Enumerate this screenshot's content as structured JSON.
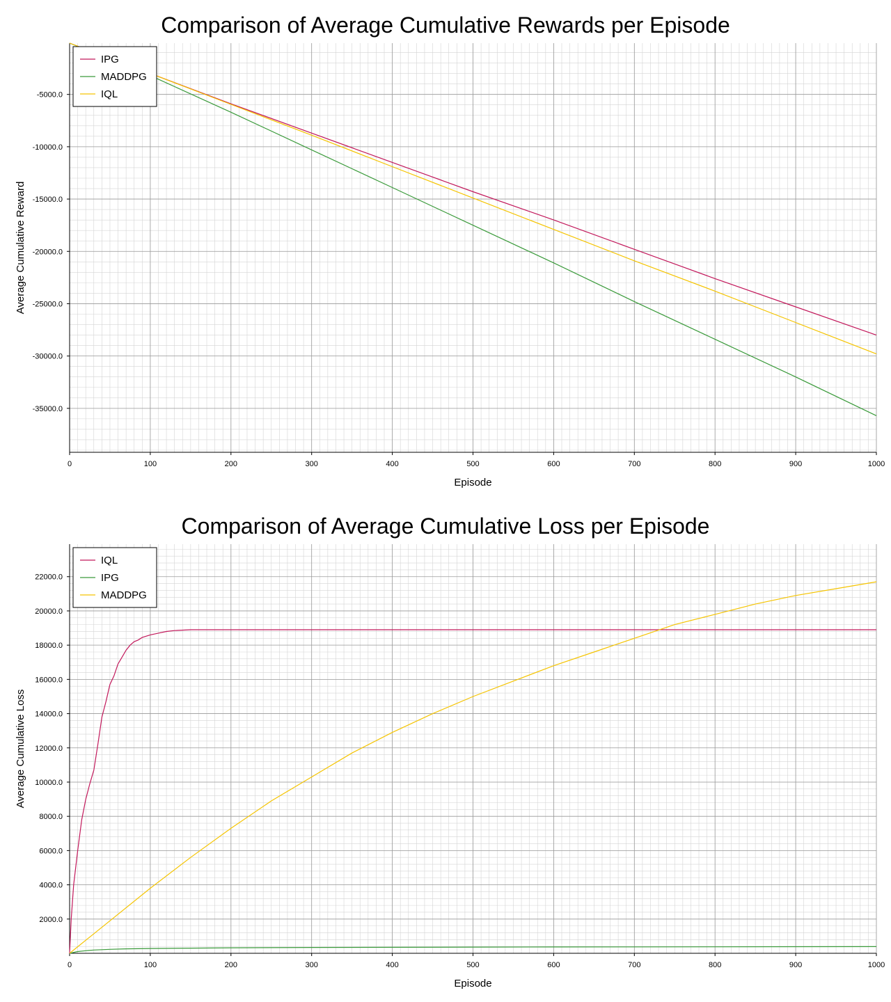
{
  "charts": [
    {
      "title": "Comparison of Average Cumulative Rewards per Episode",
      "xlabel": "Episode",
      "ylabel": "Average Cumulative Reward"
    },
    {
      "title": "Comparison of Average Cumulative Loss per Episode",
      "xlabel": "Episode",
      "ylabel": "Average Cumulative Loss"
    }
  ],
  "chart_data": [
    {
      "type": "line",
      "title": "Comparison of Average Cumulative Rewards per Episode",
      "xlabel": "Episode",
      "ylabel": "Average Cumulative Reward",
      "xlim": [
        0,
        1000
      ],
      "ylim": [
        -39200,
        -100
      ],
      "xticks": [
        0,
        100,
        200,
        300,
        400,
        500,
        600,
        700,
        800,
        900,
        1000
      ],
      "yticks": [
        -35000,
        -30000,
        -25000,
        -20000,
        -15000,
        -10000,
        -5000
      ],
      "ytick_labels": [
        "-35000.0",
        "-30000.0",
        "-25000.0",
        "-20000.0",
        "-15000.0",
        "-10000.0",
        "-5000.0"
      ],
      "grid": true,
      "legend_position": "top-left",
      "series": [
        {
          "name": "IPG",
          "color": "#c2185b",
          "x": [
            0,
            100,
            200,
            300,
            400,
            500,
            600,
            700,
            800,
            900,
            1000
          ],
          "y": [
            -100,
            -3000,
            -5900,
            -8700,
            -11500,
            -14300,
            -17000,
            -19800,
            -22600,
            -25300,
            -28000
          ]
        },
        {
          "name": "MADDPG",
          "color": "#3a9a3a",
          "x": [
            0,
            100,
            200,
            300,
            400,
            500,
            600,
            700,
            800,
            900,
            1000
          ],
          "y": [
            -100,
            -3200,
            -6700,
            -10300,
            -13900,
            -17500,
            -21100,
            -24800,
            -28400,
            -32000,
            -35700
          ]
        },
        {
          "name": "IQL",
          "color": "#f5c400",
          "x": [
            0,
            100,
            200,
            300,
            400,
            500,
            600,
            700,
            800,
            900,
            1000
          ],
          "y": [
            -100,
            -3000,
            -5950,
            -8900,
            -11900,
            -14900,
            -17900,
            -20900,
            -23800,
            -26800,
            -29800
          ]
        }
      ]
    },
    {
      "type": "line",
      "title": "Comparison of Average Cumulative Loss per Episode",
      "xlabel": "Episode",
      "ylabel": "Average Cumulative Loss",
      "xlim": [
        0,
        1000
      ],
      "ylim": [
        0,
        23900
      ],
      "xticks": [
        0,
        100,
        200,
        300,
        400,
        500,
        600,
        700,
        800,
        900,
        1000
      ],
      "yticks": [
        2000,
        4000,
        6000,
        8000,
        10000,
        12000,
        14000,
        16000,
        18000,
        20000,
        22000
      ],
      "ytick_labels": [
        "2000.0",
        "4000.0",
        "6000.0",
        "8000.0",
        "10000.0",
        "12000.0",
        "14000.0",
        "16000.0",
        "18000.0",
        "20000.0",
        "22000.0"
      ],
      "grid": true,
      "legend_position": "top-left",
      "series": [
        {
          "name": "IQL",
          "color": "#c2185b",
          "x": [
            0,
            2,
            5,
            10,
            15,
            20,
            25,
            30,
            35,
            40,
            45,
            50,
            55,
            60,
            65,
            70,
            75,
            80,
            85,
            90,
            100,
            110,
            120,
            130,
            150,
            200,
            300,
            400,
            500,
            600,
            700,
            800,
            900,
            1000
          ],
          "y": [
            0,
            2000,
            4000,
            6000,
            7800,
            9000,
            9900,
            10700,
            12200,
            13800,
            14700,
            15700,
            16200,
            16900,
            17300,
            17700,
            18000,
            18200,
            18300,
            18450,
            18600,
            18700,
            18800,
            18850,
            18900,
            18900,
            18900,
            18900,
            18900,
            18900,
            18900,
            18900,
            18900,
            18900
          ]
        },
        {
          "name": "IPG",
          "color": "#3a9a3a",
          "x": [
            0,
            10,
            20,
            30,
            50,
            70,
            100,
            150,
            200,
            300,
            400,
            500,
            600,
            700,
            800,
            900,
            1000
          ],
          "y": [
            0,
            100,
            150,
            190,
            230,
            260,
            280,
            300,
            320,
            340,
            350,
            360,
            370,
            375,
            380,
            385,
            390
          ]
        },
        {
          "name": "MADDPG",
          "color": "#f5c400",
          "x": [
            0,
            50,
            100,
            150,
            200,
            250,
            300,
            350,
            400,
            450,
            500,
            550,
            600,
            650,
            700,
            750,
            800,
            850,
            900,
            950,
            1000
          ],
          "y": [
            0,
            1900,
            3800,
            5600,
            7300,
            8900,
            10300,
            11700,
            12900,
            14000,
            15000,
            15900,
            16800,
            17600,
            18400,
            19200,
            19800,
            20400,
            20900,
            21300,
            21700
          ]
        }
      ]
    }
  ]
}
